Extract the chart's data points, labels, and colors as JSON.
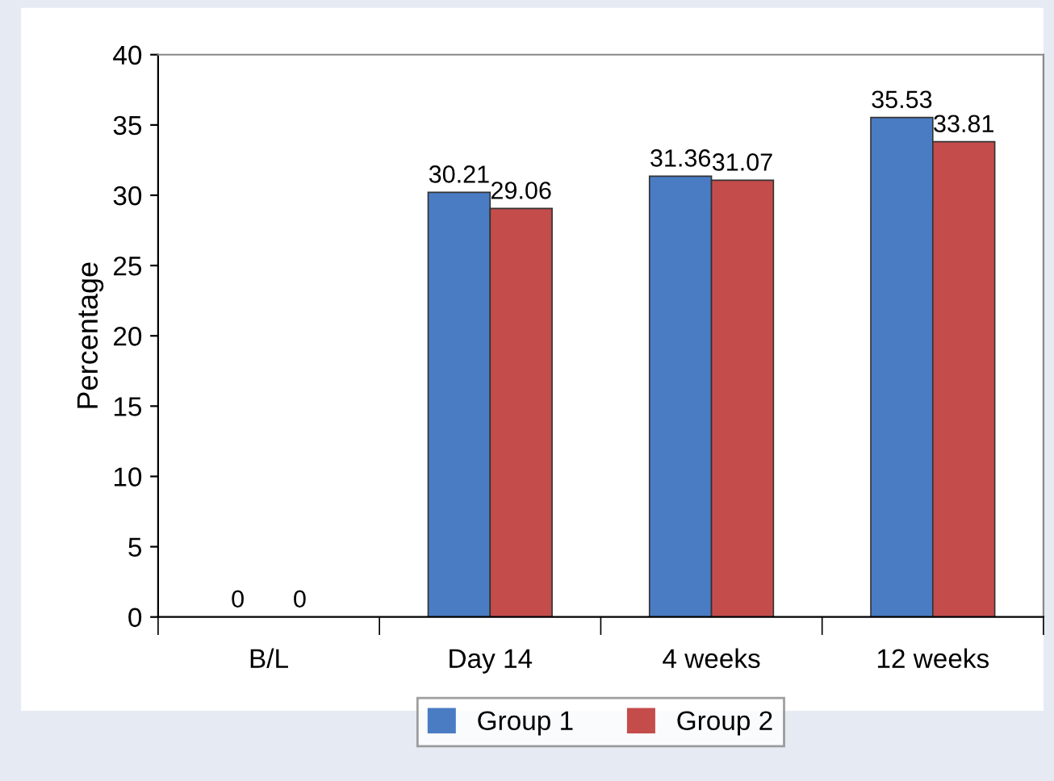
{
  "chart_data": {
    "type": "bar",
    "ylabel": "Percentage",
    "categories": [
      "B/L",
      "Day 14",
      "4 weeks",
      "12 weeks"
    ],
    "series": [
      {
        "name": "Group 1",
        "color": "#4a7cc4",
        "values": [
          0,
          30.21,
          31.36,
          35.53
        ]
      },
      {
        "name": "Group 2",
        "color": "#c44d4b",
        "values": [
          0,
          29.06,
          31.07,
          33.81
        ]
      }
    ],
    "ylim": [
      0,
      40
    ],
    "yticks": [
      0,
      5,
      10,
      15,
      20,
      25,
      30,
      35,
      40
    ],
    "data_labels": true,
    "legend": "bottom",
    "grid": false
  }
}
